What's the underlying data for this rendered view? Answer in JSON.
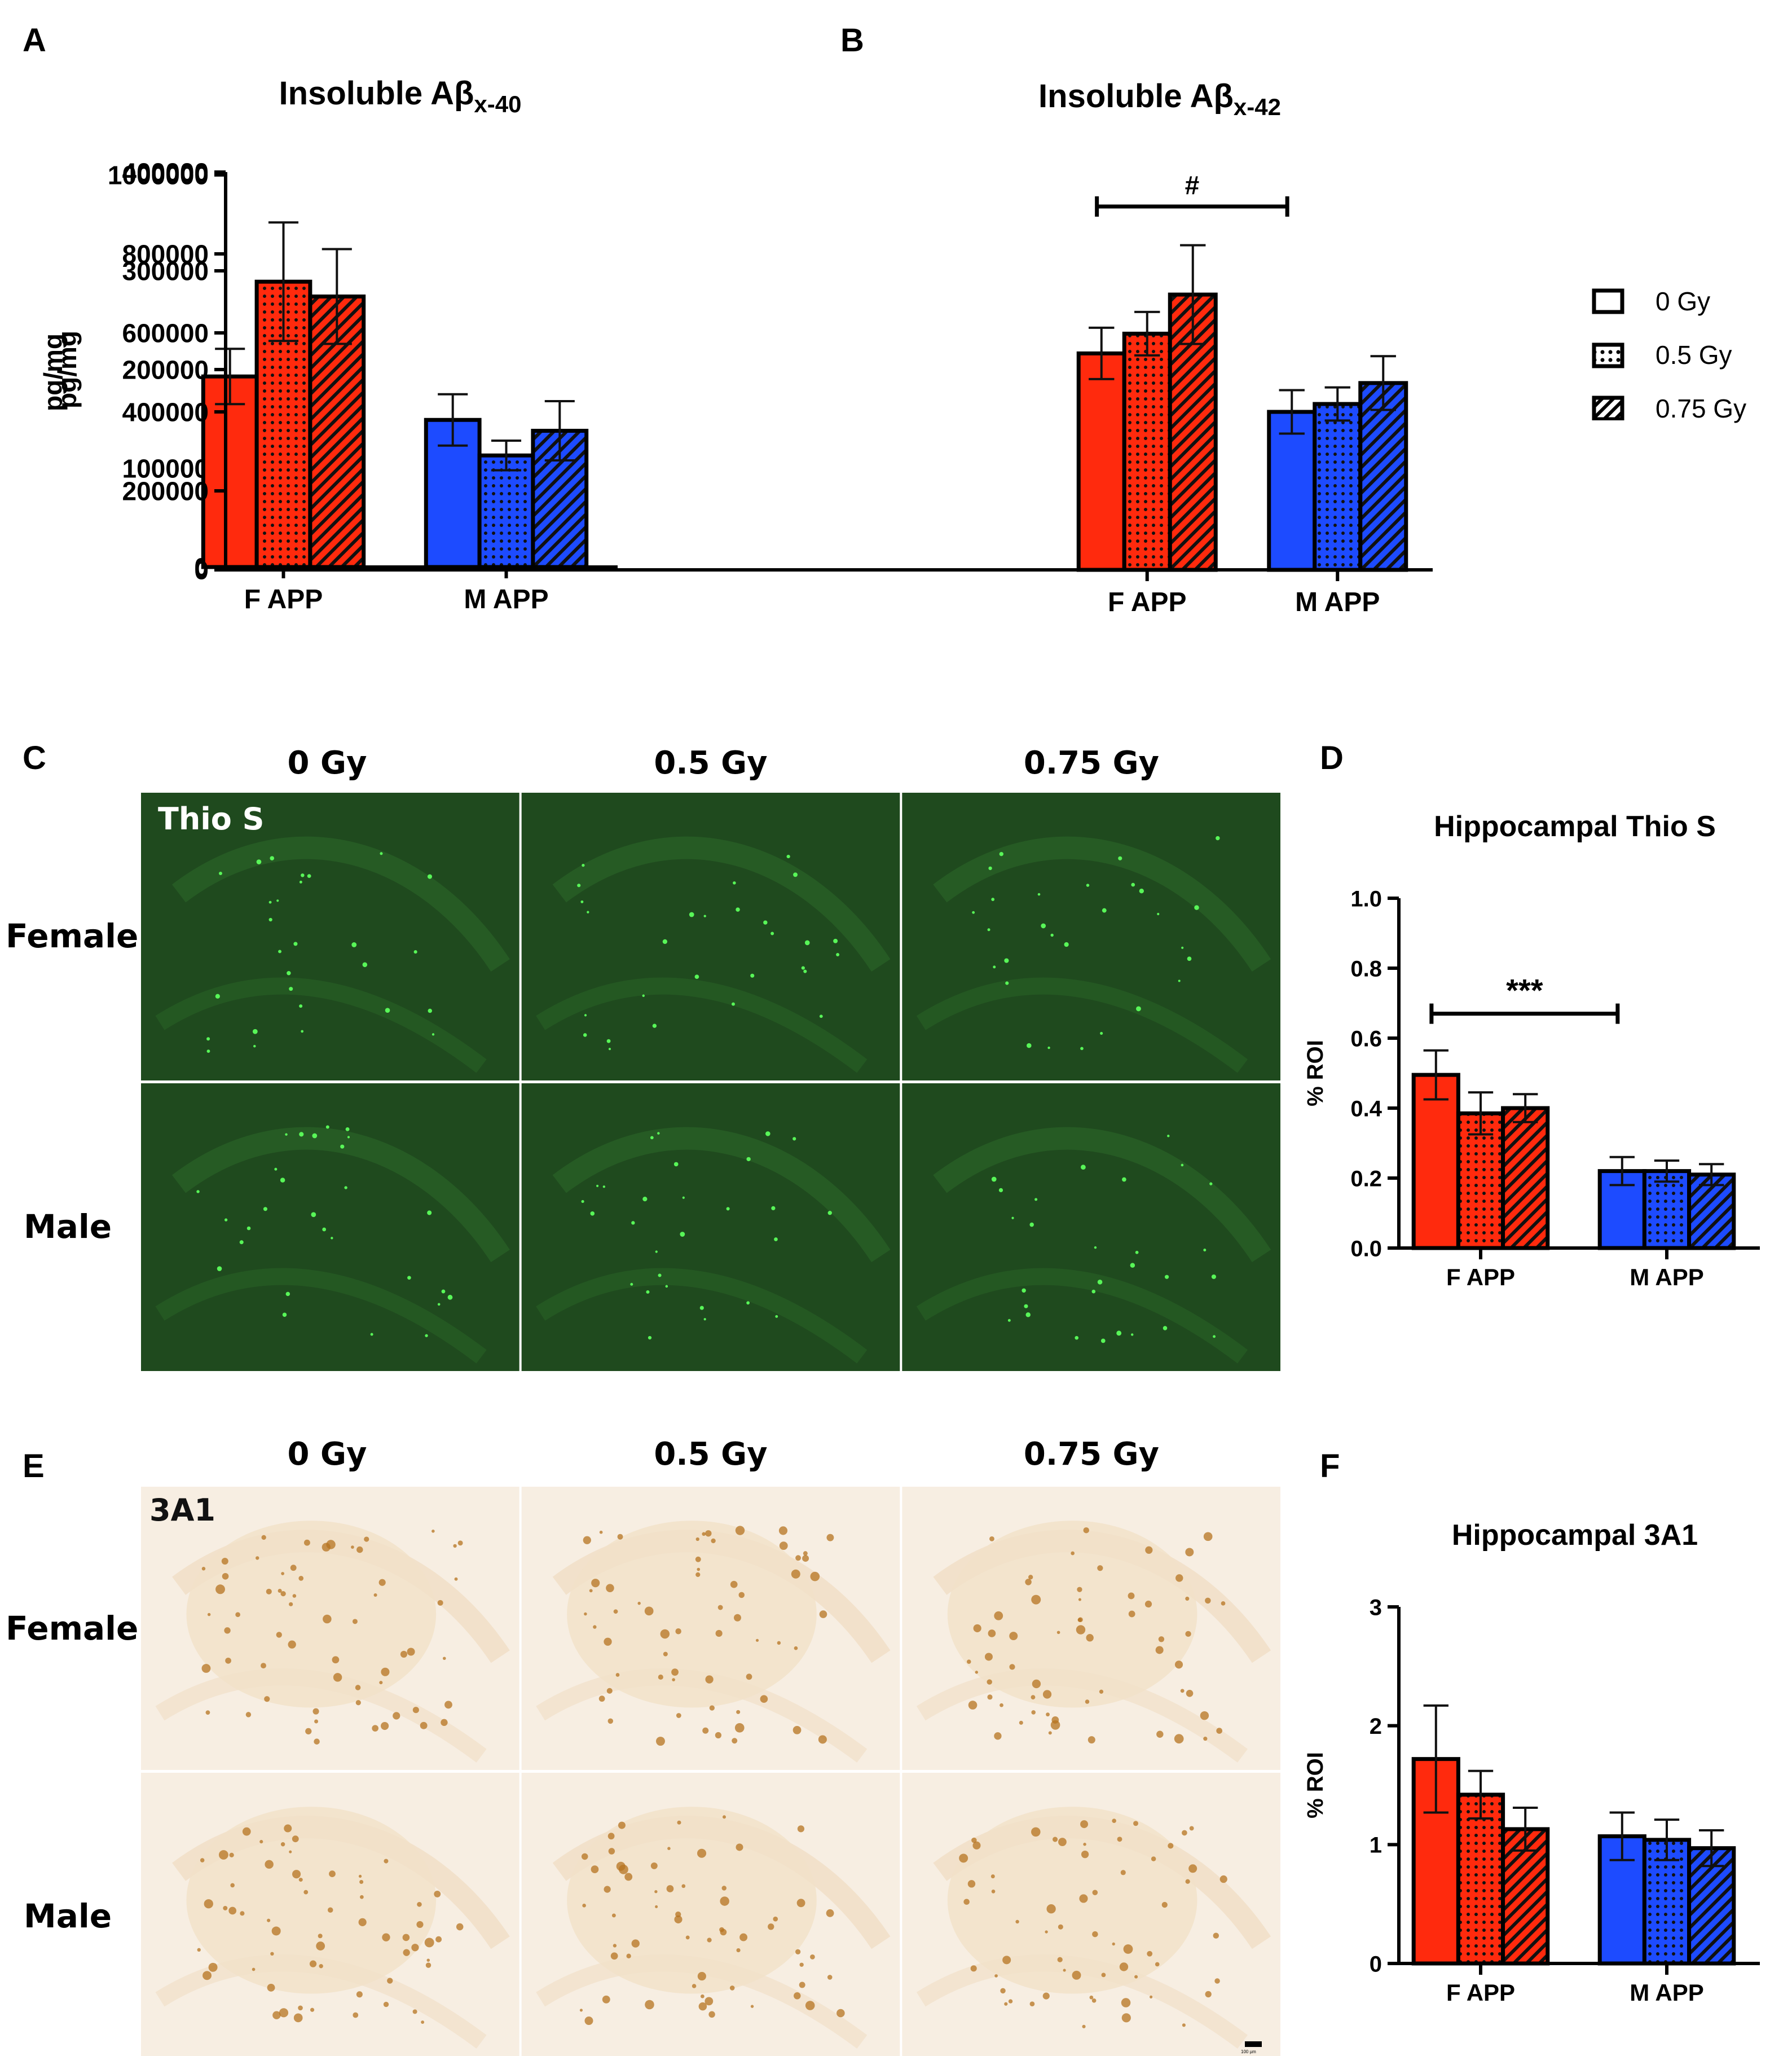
{
  "panels": {
    "A": "A",
    "B": "B",
    "C": "C",
    "D": "D",
    "E": "E",
    "F": "F"
  },
  "legend": {
    "items": [
      {
        "label": "0 Gy",
        "pattern": "solid"
      },
      {
        "label": "0.5 Gy",
        "pattern": "dots"
      },
      {
        "label": "0.75 Gy",
        "pattern": "hatch"
      }
    ]
  },
  "colors": {
    "female": "#ff2a0d",
    "male": "#1d4bff",
    "axis": "#000000"
  },
  "micrographs": {
    "thio": {
      "stain_label": "Thio S",
      "columns": [
        "0 Gy",
        "0.5 Gy",
        "0.75 Gy"
      ],
      "rows": [
        "Female",
        "Male"
      ],
      "background": "#1f4a1e",
      "spot_color": "#5cff5c"
    },
    "a3a1": {
      "stain_label": "3A1",
      "columns": [
        "0 Gy",
        "0.5 Gy",
        "0.75 Gy"
      ],
      "rows": [
        "Female",
        "Male"
      ],
      "background": "#f7eee2",
      "spot_color": "#b5731f",
      "scale_bar": "100 µm"
    }
  },
  "chart_data": [
    {
      "id": "A",
      "type": "bar",
      "title": "Insoluble Aβ",
      "title_sub": "x-40",
      "ylabel": "pg/mg",
      "xlabel": "",
      "ylim": [
        0,
        400000
      ],
      "yticks": [
        0,
        100000,
        200000,
        300000,
        400000
      ],
      "ytick_labels": [
        "0",
        "100000",
        "200000",
        "300000",
        "400000"
      ],
      "categories": [
        "F APP",
        "M APP"
      ],
      "series": [
        {
          "name": "0 Gy",
          "values": [
            193000,
            149000
          ],
          "errors": [
            28000,
            26000
          ]
        },
        {
          "name": "0.5 Gy",
          "values": [
            289000,
            113000
          ],
          "errors": [
            60000,
            15000
          ]
        },
        {
          "name": "0.75 Gy",
          "values": [
            274000,
            138000
          ],
          "errors": [
            48000,
            30000
          ]
        }
      ],
      "annotations": []
    },
    {
      "id": "B",
      "type": "bar",
      "title": "Insoluble Aβ",
      "title_sub": "x-42",
      "ylabel": "pg/mg",
      "xlabel": "",
      "ylim": [
        0,
        1000000
      ],
      "yticks": [
        0,
        200000,
        400000,
        600000,
        800000,
        1000000
      ],
      "ytick_labels": [
        "0",
        "200000",
        "400000",
        "600000",
        "800000",
        "1000000"
      ],
      "categories": [
        "F APP",
        "M APP"
      ],
      "series": [
        {
          "name": "0 Gy",
          "values": [
            548000,
            400000
          ],
          "errors": [
            65000,
            55000
          ]
        },
        {
          "name": "0.5 Gy",
          "values": [
            598000,
            420000
          ],
          "errors": [
            55000,
            42000
          ]
        },
        {
          "name": "0.75 Gy",
          "values": [
            697000,
            473000
          ],
          "errors": [
            125000,
            68000
          ]
        }
      ],
      "annotations": [
        {
          "text": "#",
          "from": 0,
          "to": 1,
          "y": 920000
        }
      ]
    },
    {
      "id": "D",
      "type": "bar",
      "title": "Hippocampal Thio S",
      "title_sub": "",
      "ylabel": "% ROI",
      "xlabel": "",
      "ylim": [
        0,
        1.0
      ],
      "yticks": [
        0,
        0.2,
        0.4,
        0.6,
        0.8,
        1.0
      ],
      "ytick_labels": [
        "0.0",
        "0.2",
        "0.4",
        "0.6",
        "0.8",
        "1.0"
      ],
      "categories": [
        "F APP",
        "M APP"
      ],
      "series": [
        {
          "name": "0 Gy",
          "values": [
            0.495,
            0.22
          ],
          "errors": [
            0.07,
            0.04
          ]
        },
        {
          "name": "0.5 Gy",
          "values": [
            0.385,
            0.22
          ],
          "errors": [
            0.06,
            0.03
          ]
        },
        {
          "name": "0.75 Gy",
          "values": [
            0.4,
            0.21
          ],
          "errors": [
            0.04,
            0.03
          ]
        }
      ],
      "annotations": [
        {
          "text": "***",
          "from": 0,
          "to": 1,
          "y": 0.67
        }
      ]
    },
    {
      "id": "F",
      "type": "bar",
      "title": "Hippocampal 3A1",
      "title_sub": "",
      "ylabel": "% ROI",
      "xlabel": "",
      "ylim": [
        0,
        3
      ],
      "yticks": [
        0,
        1,
        2,
        3
      ],
      "ytick_labels": [
        "0",
        "1",
        "2",
        "3"
      ],
      "categories": [
        "F APP",
        "M APP"
      ],
      "series": [
        {
          "name": "0 Gy",
          "values": [
            1.72,
            1.07
          ],
          "errors": [
            0.45,
            0.2
          ]
        },
        {
          "name": "0.5 Gy",
          "values": [
            1.42,
            1.04
          ],
          "errors": [
            0.2,
            0.17
          ]
        },
        {
          "name": "0.75 Gy",
          "values": [
            1.13,
            0.97
          ],
          "errors": [
            0.18,
            0.15
          ]
        }
      ],
      "annotations": []
    }
  ]
}
